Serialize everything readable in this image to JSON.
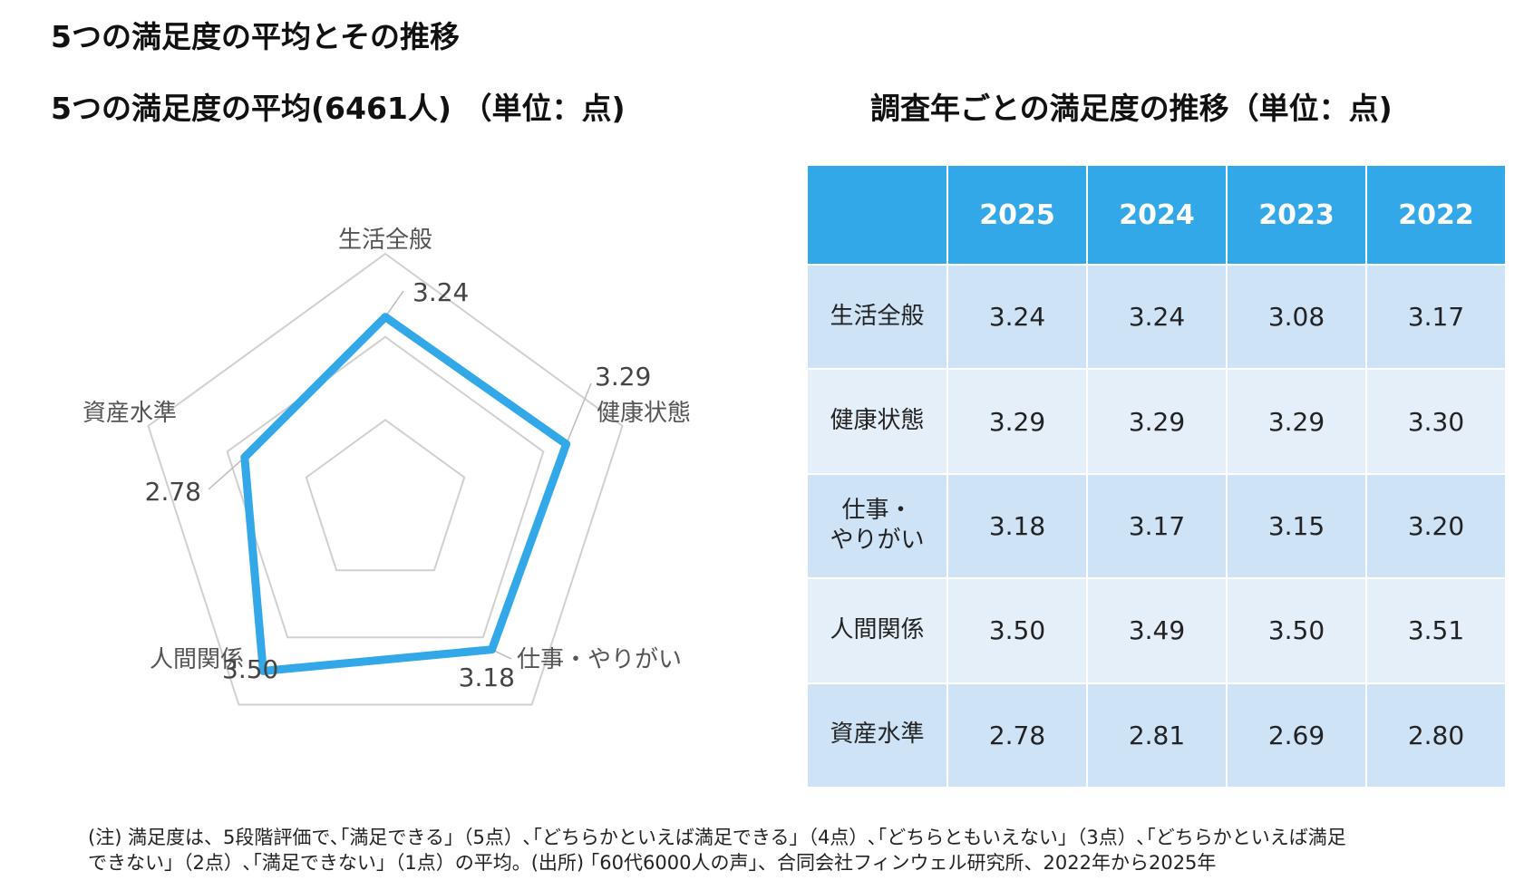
{
  "title": "5つの満足度の平均とその推移",
  "radar_title": "5つの満足度の平均(6461人) （単位：点)",
  "table_title": "調査年ごとの満足度の推移（単位：点)",
  "colors": {
    "accent": "#33a8e8",
    "grid": "#d0d0d0",
    "header_bg": "#33a8e8",
    "row_a": "#cfe3f7",
    "row_b": "#e5effa"
  },
  "chart_data": [
    {
      "type": "radar",
      "title": "5つの満足度の平均(6461人) （単位：点)",
      "categories": [
        "生活全般",
        "健康状態",
        "仕事・やりがい",
        "人間関係",
        "資産水準"
      ],
      "series": [
        {
          "values": [
            3.24,
            3.29,
            3.18,
            3.5,
            2.78
          ]
        }
      ],
      "data_labels": [
        "3.24",
        "3.29",
        "3.18",
        "3.50",
        "2.78"
      ],
      "rlim": [
        1,
        4
      ],
      "grid_rings": 3,
      "legend": "none"
    },
    {
      "type": "table",
      "title": "調査年ごとの満足度の推移（単位：点)",
      "columns": [
        "",
        "2025",
        "2024",
        "2023",
        "2022"
      ],
      "rows": [
        {
          "label": "生活全般",
          "label_lines": [
            "生活全般"
          ],
          "values": [
            "3.24",
            "3.24",
            "3.08",
            "3.17"
          ]
        },
        {
          "label": "健康状態",
          "label_lines": [
            "健康状態"
          ],
          "values": [
            "3.29",
            "3.29",
            "3.29",
            "3.30"
          ]
        },
        {
          "label": "仕事・やりがい",
          "label_lines": [
            "仕事・",
            "やりがい"
          ],
          "values": [
            "3.18",
            "3.17",
            "3.15",
            "3.20"
          ]
        },
        {
          "label": "人間関係",
          "label_lines": [
            "人間関係"
          ],
          "values": [
            "3.50",
            "3.49",
            "3.50",
            "3.51"
          ]
        },
        {
          "label": "資産水準",
          "label_lines": [
            "資産水準"
          ],
          "values": [
            "2.78",
            "2.81",
            "2.69",
            "2.80"
          ]
        }
      ]
    }
  ],
  "footnote": {
    "line1": "(注) 満足度は、5段階評価で､｢満足できる｣（5点）､｢どちらかといえば満足できる｣（4点）､｢どちらともいえない｣（3点）､｢どちらかといえば満足",
    "line2": "できない｣（2点）､｢満足できない｣（1点）の平均。(出所) ｢60代6000人の声｣、合同会社フィンウェル研究所、2022年から2025年"
  }
}
